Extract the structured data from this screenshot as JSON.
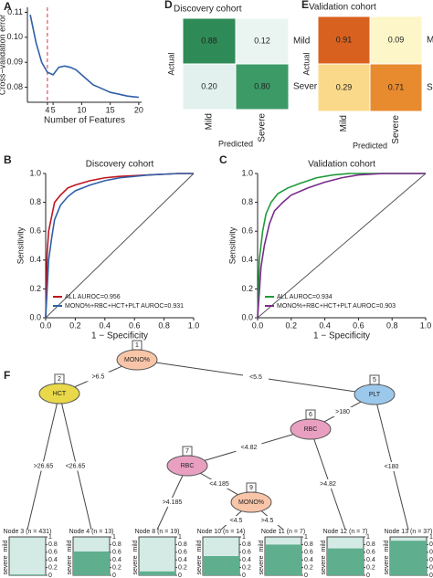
{
  "chart_data": [
    {
      "type": "line",
      "label": "A",
      "xlabel": "Number of Features",
      "ylabel": "Cross−validation error",
      "x": [
        1,
        2,
        3,
        4,
        5,
        6,
        7,
        8,
        9,
        10,
        11,
        12,
        13,
        14,
        15,
        16,
        17,
        18,
        19,
        20
      ],
      "series": [
        {
          "color": "#2f5fa7",
          "values": [
            0.109,
            0.098,
            0.09,
            0.086,
            0.085,
            0.088,
            0.0885,
            0.088,
            0.087,
            0.085,
            0.083,
            0.081,
            0.08,
            0.079,
            0.078,
            0.0775,
            0.077,
            0.0765,
            0.0762,
            0.076
          ]
        }
      ],
      "xlim": [
        0.5,
        20.5
      ],
      "xticks": [
        4,
        5,
        10,
        15,
        20
      ],
      "ylim": [
        0.074,
        0.112
      ],
      "yticks": [
        0.08,
        0.09,
        {
          "value": 0.1,
          "label": "0.10"
        },
        0.11
      ],
      "vline": {
        "x": 4,
        "color": "#d9333f"
      }
    },
    {
      "type": "heatmap",
      "label": "D",
      "title": "Discovery cohort",
      "xlabel": "Predicted",
      "ylabel": "Actual",
      "rows": [
        "Mild",
        "Severe"
      ],
      "cols": [
        "Mild",
        "Severe"
      ],
      "values": [
        [
          0.88,
          0.12
        ],
        [
          0.2,
          0.8
        ]
      ],
      "value_labels": [
        [
          "0.88",
          "0.12"
        ],
        [
          "0.20",
          "0.80"
        ]
      ],
      "cell_colors": [
        [
          "#2e8b57",
          "#eaf5f2"
        ],
        [
          "#e2f1ee",
          "#3c9a67"
        ]
      ]
    },
    {
      "type": "heatmap",
      "label": "E",
      "title": "Validation cohort",
      "xlabel": "Predicted",
      "ylabel": "Actual",
      "rows": [
        "Mild",
        "Severe"
      ],
      "cols": [
        "Mild",
        "Severe"
      ],
      "values": [
        [
          0.91,
          0.09
        ],
        [
          0.29,
          0.71
        ]
      ],
      "value_labels": [
        [
          "0.91",
          "0.09"
        ],
        [
          "0.29",
          "0.71"
        ]
      ],
      "cell_colors": [
        [
          "#d9611f",
          "#fdf6c8"
        ],
        [
          "#fbd98a",
          "#e88a2e"
        ]
      ]
    },
    {
      "type": "roc",
      "label": "B",
      "title": "Discovery cohort",
      "xlabel": "1 − Specificity",
      "ylabel": "Sensitivity",
      "xlim": [
        0,
        1
      ],
      "ylim": [
        0,
        1
      ],
      "xticks": [
        {
          "value": 0,
          "label": "0.0"
        },
        0.2,
        0.4,
        0.6,
        0.8,
        {
          "value": 1,
          "label": "1.0"
        }
      ],
      "yticks": [
        {
          "value": 0,
          "label": "0.0"
        },
        0.2,
        0.4,
        0.6,
        0.8,
        {
          "value": 1,
          "label": "1.0"
        }
      ],
      "legend": "lower left",
      "series": [
        {
          "name": "ALL AUROC=0.956",
          "color": "#c0141f",
          "x": [
            0,
            0.01,
            0.02,
            0.04,
            0.06,
            0.1,
            0.15,
            0.2,
            0.3,
            0.4,
            0.5,
            0.7,
            0.9,
            1
          ],
          "values": [
            0,
            0.45,
            0.6,
            0.7,
            0.8,
            0.85,
            0.9,
            0.92,
            0.95,
            0.97,
            0.98,
            0.99,
            1,
            1
          ]
        },
        {
          "name": "MONO%+RBC+HCT+PLT AUROC=0.931",
          "color": "#2f5fa7",
          "x": [
            0,
            0.02,
            0.04,
            0.06,
            0.1,
            0.15,
            0.2,
            0.3,
            0.4,
            0.5,
            0.7,
            0.9,
            1
          ],
          "values": [
            0,
            0.4,
            0.55,
            0.68,
            0.78,
            0.84,
            0.88,
            0.92,
            0.95,
            0.97,
            0.99,
            1,
            1
          ]
        }
      ]
    },
    {
      "type": "roc",
      "label": "C",
      "title": "Validation cohort",
      "xlabel": "1 − Specificity",
      "ylabel": "Sensitivity",
      "xlim": [
        0,
        1
      ],
      "ylim": [
        0,
        1
      ],
      "xticks": [
        {
          "value": 0,
          "label": "0.0"
        },
        0.2,
        0.4,
        0.6,
        0.8,
        {
          "value": 1,
          "label": "1.0"
        }
      ],
      "yticks": [
        {
          "value": 0,
          "label": "0.0"
        },
        0.2,
        0.4,
        0.6,
        0.8,
        {
          "value": 1,
          "label": "1.0"
        }
      ],
      "legend": "lower left",
      "series": [
        {
          "name": "ALL AUROC=0.934",
          "color": "#1f9a3a",
          "x": [
            0,
            0.01,
            0.03,
            0.05,
            0.08,
            0.12,
            0.18,
            0.25,
            0.35,
            0.45,
            0.55,
            1
          ],
          "values": [
            0,
            0.4,
            0.6,
            0.72,
            0.8,
            0.86,
            0.9,
            0.93,
            0.97,
            0.99,
            1,
            1
          ]
        },
        {
          "name": "MONO%+RBC+HCT+PLT AUROC=0.903",
          "color": "#7b2a8c",
          "x": [
            0,
            0.02,
            0.04,
            0.07,
            0.1,
            0.15,
            0.2,
            0.3,
            0.4,
            0.5,
            0.6,
            0.75,
            1
          ],
          "values": [
            0,
            0.35,
            0.5,
            0.65,
            0.74,
            0.8,
            0.85,
            0.9,
            0.94,
            0.97,
            0.99,
            1,
            1
          ]
        }
      ]
    }
  ],
  "tree": {
    "label": "F",
    "nodes": [
      {
        "id": 1,
        "label": "MONO%",
        "color": "#f9c5a8"
      },
      {
        "id": 2,
        "label": "HCT",
        "color": "#e8d84a"
      },
      {
        "id": 5,
        "label": "PLT",
        "color": "#9cc8ec"
      },
      {
        "id": 6,
        "label": "RBC",
        "color": "#e9a0c0"
      },
      {
        "id": 7,
        "label": "RBC",
        "color": "#e9a0c0"
      },
      {
        "id": 9,
        "label": "MONO%",
        "color": "#f9c5a8"
      }
    ],
    "edges": [
      {
        "from": 1,
        "to": 2,
        "label": ">6.5"
      },
      {
        "from": 1,
        "to": 5,
        "label": "<5.5"
      },
      {
        "from": 2,
        "to": 3,
        "label": ">26.65"
      },
      {
        "from": 2,
        "to": 4,
        "label": "<26.65"
      },
      {
        "from": 5,
        "to": 6,
        "label": ">180"
      },
      {
        "from": 5,
        "to": 13,
        "label": "<180"
      },
      {
        "from": 6,
        "to": 7,
        "label": "<4.82"
      },
      {
        "from": 6,
        "to": 12,
        "label": ">4.82"
      },
      {
        "from": 7,
        "to": 8,
        "label": ">4.185"
      },
      {
        "from": 7,
        "to": 9,
        "label": "<4.185"
      },
      {
        "from": 9,
        "to": 10,
        "label": "<4.5"
      },
      {
        "from": 9,
        "to": 11,
        "label": ">4.5"
      }
    ],
    "leaves": [
      {
        "id": 3,
        "title": "Node 3 (n = 431)",
        "severe": 0.02
      },
      {
        "id": 4,
        "title": "Node 4 (n = 13)",
        "severe": 0.62
      },
      {
        "id": 8,
        "title": "Node 8 (n = 19)",
        "severe": 0.1
      },
      {
        "id": 10,
        "title": "Node 10 (n = 14)",
        "severe": 0.5
      },
      {
        "id": 11,
        "title": "Node 11 (n = 7)",
        "severe": 0.8
      },
      {
        "id": 12,
        "title": "Node 12 (n = 7)",
        "severe": 0.7
      },
      {
        "id": 13,
        "title": "Node 13 (n = 37)",
        "severe": 0.9
      }
    ],
    "leaf_yticks": [
      0,
      0.2,
      0.4,
      0.6,
      0.8,
      1
    ],
    "leaf_classes": [
      "mild",
      "severe"
    ],
    "mild_color": "#d4ebe5",
    "severe_color": "#5fae8e"
  }
}
